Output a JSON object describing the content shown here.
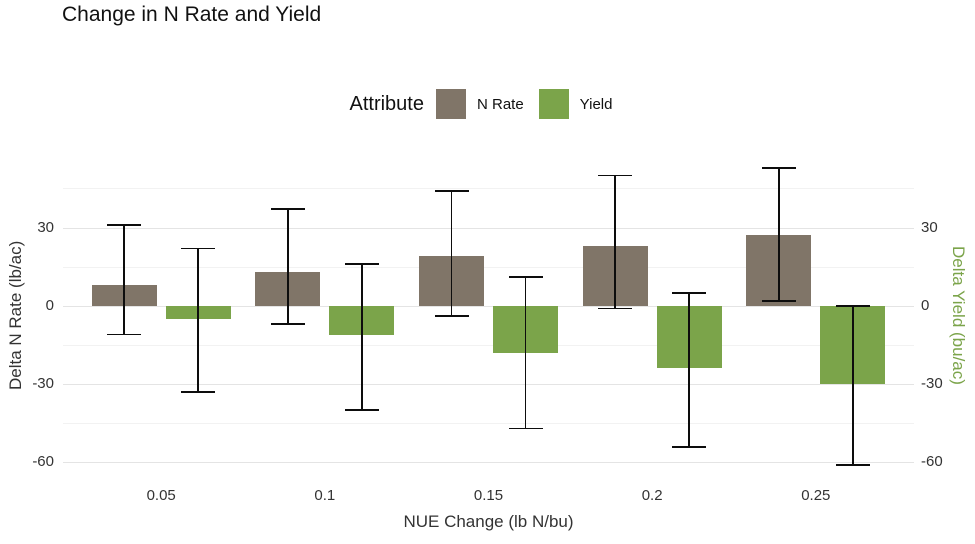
{
  "title": "Change in N Rate and Yield",
  "legend": {
    "title": "Attribute",
    "items": [
      {
        "label": "N Rate",
        "color": "#807568"
      },
      {
        "label": "Yield",
        "color": "#7ba44a"
      }
    ]
  },
  "chart_data": {
    "type": "bar",
    "title": "Change in N Rate and Yield",
    "xlabel": "NUE Change (lb N/bu)",
    "ylabel_left": "Delta N Rate (lb/ac)",
    "ylabel_right": "Delta Yield (bu/ac)",
    "categories": [
      "0.05",
      "0.1",
      "0.15",
      "0.2",
      "0.25"
    ],
    "series": [
      {
        "name": "N Rate",
        "color": "#807568",
        "values": [
          8,
          13,
          19,
          23,
          27
        ],
        "error_low": [
          -11,
          -7,
          -4,
          -1,
          2
        ],
        "error_high": [
          31,
          37,
          44,
          50,
          53
        ]
      },
      {
        "name": "Yield",
        "color": "#7ba44a",
        "values": [
          -5,
          -11,
          -18,
          -24,
          -30
        ],
        "error_low": [
          -33,
          -40,
          -47,
          -54,
          -61
        ],
        "error_high": [
          22,
          16,
          11,
          5,
          0
        ]
      }
    ],
    "ylim": [
      -66.75,
      59.75
    ],
    "yticks": [
      30,
      0,
      -30,
      -60
    ],
    "gridlines_major": [
      30,
      0,
      -30,
      -60
    ],
    "gridlines_minor": [
      45,
      15,
      -15,
      -45
    ],
    "grid": true,
    "legend_position": "top",
    "colors": {
      "grid_major": "#e4e4e4",
      "grid_minor": "#f2f2f2",
      "error_bar": "#0d0d0d",
      "tick_label": "#333333",
      "axis_title": "#333333",
      "right_axis_title": "#7ba44a",
      "title": "#111111",
      "background": "#ffffff"
    }
  }
}
